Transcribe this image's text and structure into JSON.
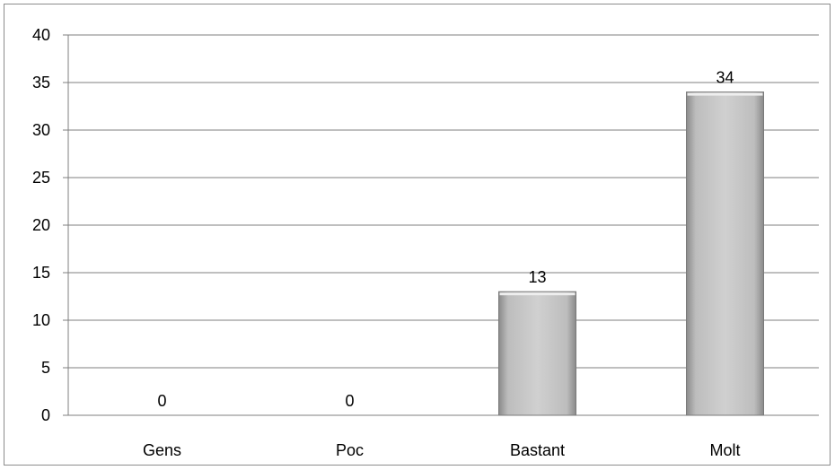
{
  "chart_data": {
    "type": "bar",
    "title": "",
    "xlabel": "",
    "ylabel": "",
    "categories": [
      "Gens",
      "Poc",
      "Bastant",
      "Molt"
    ],
    "values": [
      0,
      0,
      13,
      34
    ],
    "value_labels": [
      "0",
      "0",
      "13",
      "34"
    ],
    "ylim": [
      0,
      40
    ],
    "yticks": [
      "0",
      "5",
      "10",
      "15",
      "20",
      "25",
      "30",
      "35",
      "40"
    ],
    "grid": true,
    "legend": "none",
    "colors": {
      "bar_fill_light": "#e6e6e6",
      "bar_fill_mid": "#b5b5b5",
      "bar_fill_dark": "#8a8a8a",
      "bar_border": "#7a7a7a",
      "gridline": "#7f7f7f",
      "frame": "#8c8c8c"
    }
  }
}
